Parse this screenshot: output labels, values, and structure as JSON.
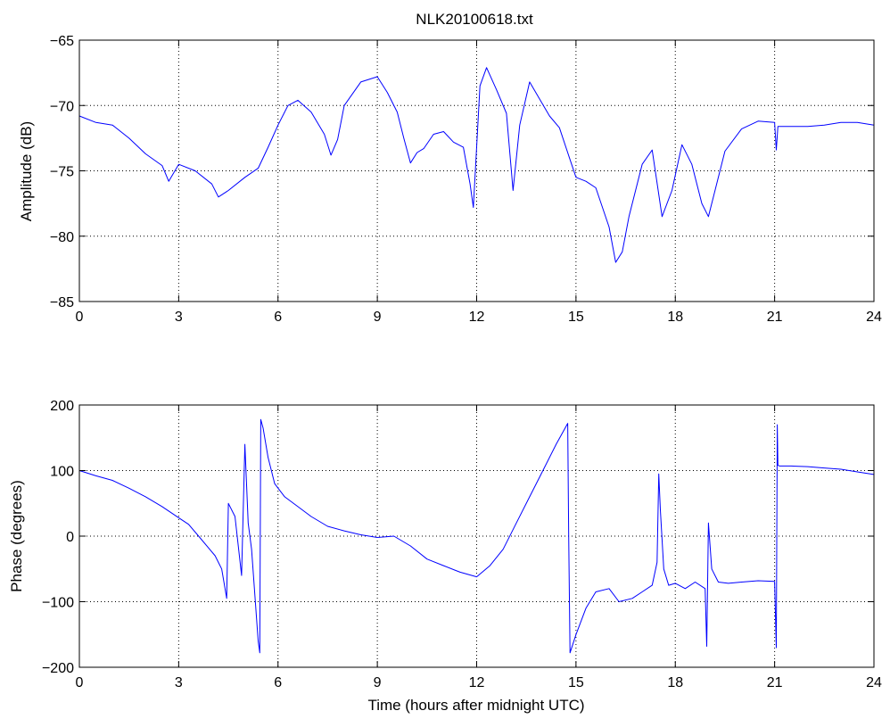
{
  "figure": {
    "title": "NLK20100618.txt",
    "line_color": "#0000ff"
  },
  "chart_data": [
    {
      "type": "line",
      "title": "NLK20100618.txt",
      "xlabel": "",
      "ylabel": "Amplitude (dB)",
      "xlim": [
        0,
        24
      ],
      "ylim": [
        -85,
        -65
      ],
      "xticks": [
        "0",
        "3",
        "6",
        "9",
        "12",
        "15",
        "18",
        "21",
        "24"
      ],
      "yticks": [
        "-85",
        "-80",
        "-75",
        "-70",
        "-65"
      ],
      "grid": true,
      "series": [
        {
          "color": "#0000ff",
          "x": [
            0,
            0.5,
            1,
            1.5,
            2,
            2.5,
            2.7,
            3,
            3.5,
            4,
            4.2,
            4.5,
            5,
            5.4,
            5.7,
            6,
            6.3,
            6.6,
            7,
            7.4,
            7.6,
            7.8,
            8,
            8.5,
            9,
            9.3,
            9.6,
            9.8,
            10,
            10.2,
            10.4,
            10.7,
            11,
            11.3,
            11.6,
            11.8,
            11.9,
            12.1,
            12.3,
            12.6,
            12.9,
            13.1,
            13.3,
            13.6,
            13.9,
            14.2,
            14.5,
            14.8,
            15,
            15.3,
            15.6,
            16,
            16.2,
            16.4,
            16.6,
            17,
            17.3,
            17.6,
            17.9,
            18.2,
            18.5,
            18.8,
            19,
            19.2,
            19.5,
            20,
            20.5,
            21,
            21.05,
            21.1,
            21.5,
            22,
            22.5,
            23,
            23.5,
            24
          ],
          "y": [
            -70.8,
            -71.3,
            -71.5,
            -72.5,
            -73.7,
            -74.6,
            -75.8,
            -74.5,
            -75,
            -76,
            -77,
            -76.5,
            -75.5,
            -74.8,
            -73.2,
            -71.5,
            -70,
            -69.6,
            -70.5,
            -72.2,
            -73.8,
            -72.6,
            -70,
            -68.2,
            -67.8,
            -69,
            -70.5,
            -72.5,
            -74.4,
            -73.6,
            -73.3,
            -72.2,
            -72,
            -72.8,
            -73.2,
            -76,
            -77.8,
            -68.5,
            -67.1,
            -68.8,
            -70.6,
            -76.5,
            -71.5,
            -68.2,
            -69.5,
            -70.8,
            -71.7,
            -74,
            -75.5,
            -75.8,
            -76.3,
            -79.3,
            -82,
            -81.2,
            -78.5,
            -74.5,
            -73.4,
            -78.5,
            -76.5,
            -73,
            -74.5,
            -77.5,
            -78.5,
            -76.5,
            -73.5,
            -71.8,
            -71.2,
            -71.3,
            -73.4,
            -71.6,
            -71.6,
            -71.6,
            -71.5,
            -71.3,
            -71.3,
            -71.5
          ]
        }
      ]
    },
    {
      "type": "line",
      "title": "",
      "xlabel": "Time (hours after midnight UTC)",
      "ylabel": "Phase (degrees)",
      "xlim": [
        0,
        24
      ],
      "ylim": [
        -200,
        200
      ],
      "xticks": [
        "0",
        "3",
        "6",
        "9",
        "12",
        "15",
        "18",
        "21",
        "24"
      ],
      "yticks": [
        "-200",
        "-100",
        "0",
        "100",
        "200"
      ],
      "grid": true,
      "series": [
        {
          "color": "#0000ff",
          "x": [
            0,
            0.5,
            1,
            1.5,
            2,
            2.5,
            3,
            3.3,
            3.6,
            3.9,
            4.1,
            4.3,
            4.45,
            4.5,
            4.7,
            4.9,
            5.0,
            5.1,
            5.2,
            5.3,
            5.4,
            5.45,
            5.48,
            5.55,
            5.7,
            5.9,
            6.2,
            6.6,
            7,
            7.5,
            8,
            8.5,
            9,
            9.5,
            10,
            10.5,
            11,
            11.5,
            12,
            12.4,
            12.8,
            13.2,
            13.6,
            14,
            14.4,
            14.75,
            14.78,
            14.82,
            15,
            15.3,
            15.6,
            16,
            16.3,
            16.7,
            17,
            17.3,
            17.45,
            17.5,
            17.55,
            17.65,
            17.8,
            18,
            18.3,
            18.6,
            18.9,
            18.95,
            19.0,
            19.1,
            19.3,
            19.6,
            20,
            20.5,
            21.0,
            21.05,
            21.08,
            21.1,
            21.15,
            21.5,
            22,
            22.5,
            23,
            23.5,
            24
          ],
          "y": [
            100,
            92,
            85,
            73,
            60,
            45,
            28,
            18,
            0,
            -18,
            -30,
            -50,
            -95,
            50,
            30,
            -60,
            140,
            20,
            -20,
            -90,
            -160,
            -178,
            178,
            165,
            120,
            80,
            60,
            45,
            30,
            15,
            8,
            2,
            -2,
            0,
            -15,
            -35,
            -45,
            -55,
            -62,
            -45,
            -20,
            20,
            60,
            100,
            140,
            172,
            0,
            -178,
            -150,
            -110,
            -85,
            -80,
            -100,
            -95,
            -85,
            -75,
            -40,
            95,
            40,
            -50,
            -75,
            -72,
            -80,
            -70,
            -80,
            -168,
            20,
            -50,
            -70,
            -72,
            -70,
            -68,
            -69,
            -170,
            170,
            108,
            107,
            107,
            106,
            104,
            102,
            98,
            94
          ]
        }
      ]
    }
  ]
}
